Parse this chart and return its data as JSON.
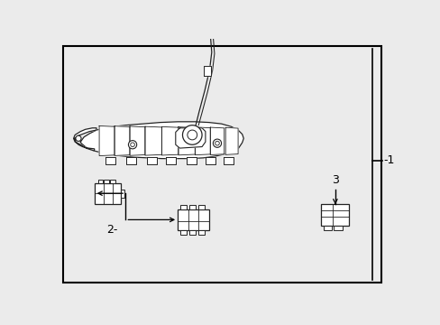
{
  "bg_color": "#ebebeb",
  "border_color": "#000000",
  "line_color": "#222222",
  "label_1": "-1",
  "label_2": "2-",
  "label_3": "3",
  "fig_width": 4.89,
  "fig_height": 3.6,
  "dpi": 100
}
